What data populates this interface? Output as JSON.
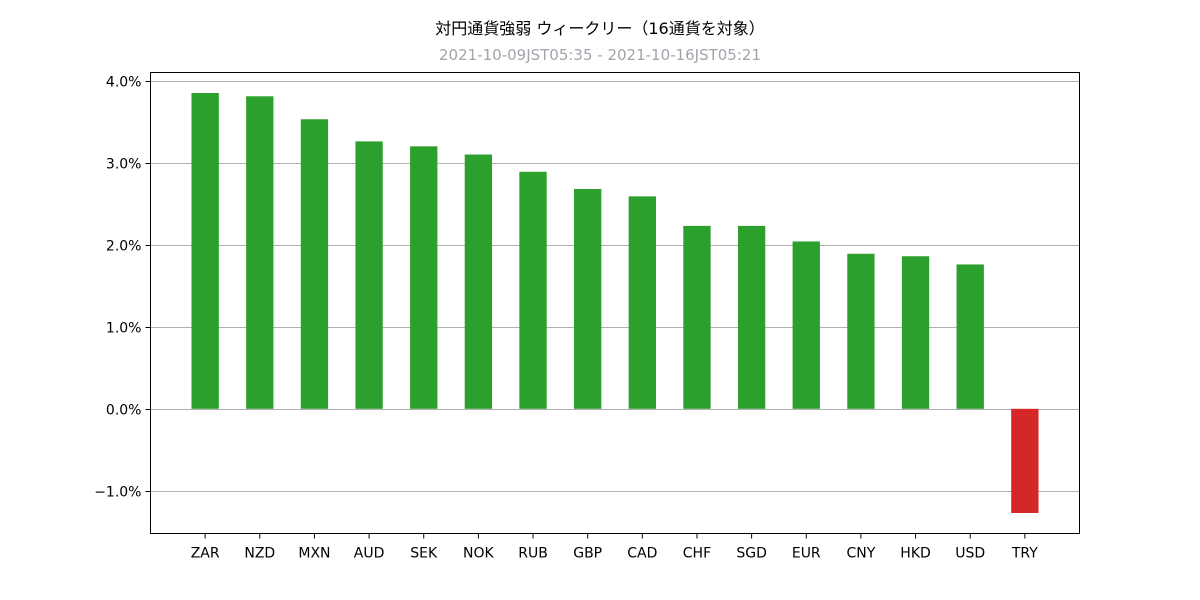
{
  "chart_data": {
    "type": "bar",
    "title": "対円通貨強弱 ウィークリー（16通貨を対象）",
    "subtitle": "2021-10-09JST05:35 - 2021-10-16JST05:21",
    "xlabel": "",
    "ylabel": "",
    "categories": [
      "ZAR",
      "NZD",
      "MXN",
      "AUD",
      "SEK",
      "NOK",
      "RUB",
      "GBP",
      "CAD",
      "CHF",
      "SGD",
      "EUR",
      "CNY",
      "HKD",
      "USD",
      "TRY"
    ],
    "values": [
      3.85,
      3.81,
      3.53,
      3.26,
      3.2,
      3.1,
      2.89,
      2.68,
      2.59,
      2.23,
      2.23,
      2.04,
      1.89,
      1.86,
      1.76,
      -1.27
    ],
    "unit": "%",
    "ylim": [
      -1.52,
      4.1
    ],
    "yticks": [
      -1.0,
      0.0,
      1.0,
      2.0,
      3.0,
      4.0
    ],
    "ytick_labels": [
      "−1.0%",
      "0.0%",
      "1.0%",
      "2.0%",
      "3.0%",
      "4.0%"
    ],
    "grid": "horizontal",
    "colors": {
      "positive": "#2ca02c",
      "negative": "#d62728",
      "grid": "#b0b0b0"
    }
  }
}
